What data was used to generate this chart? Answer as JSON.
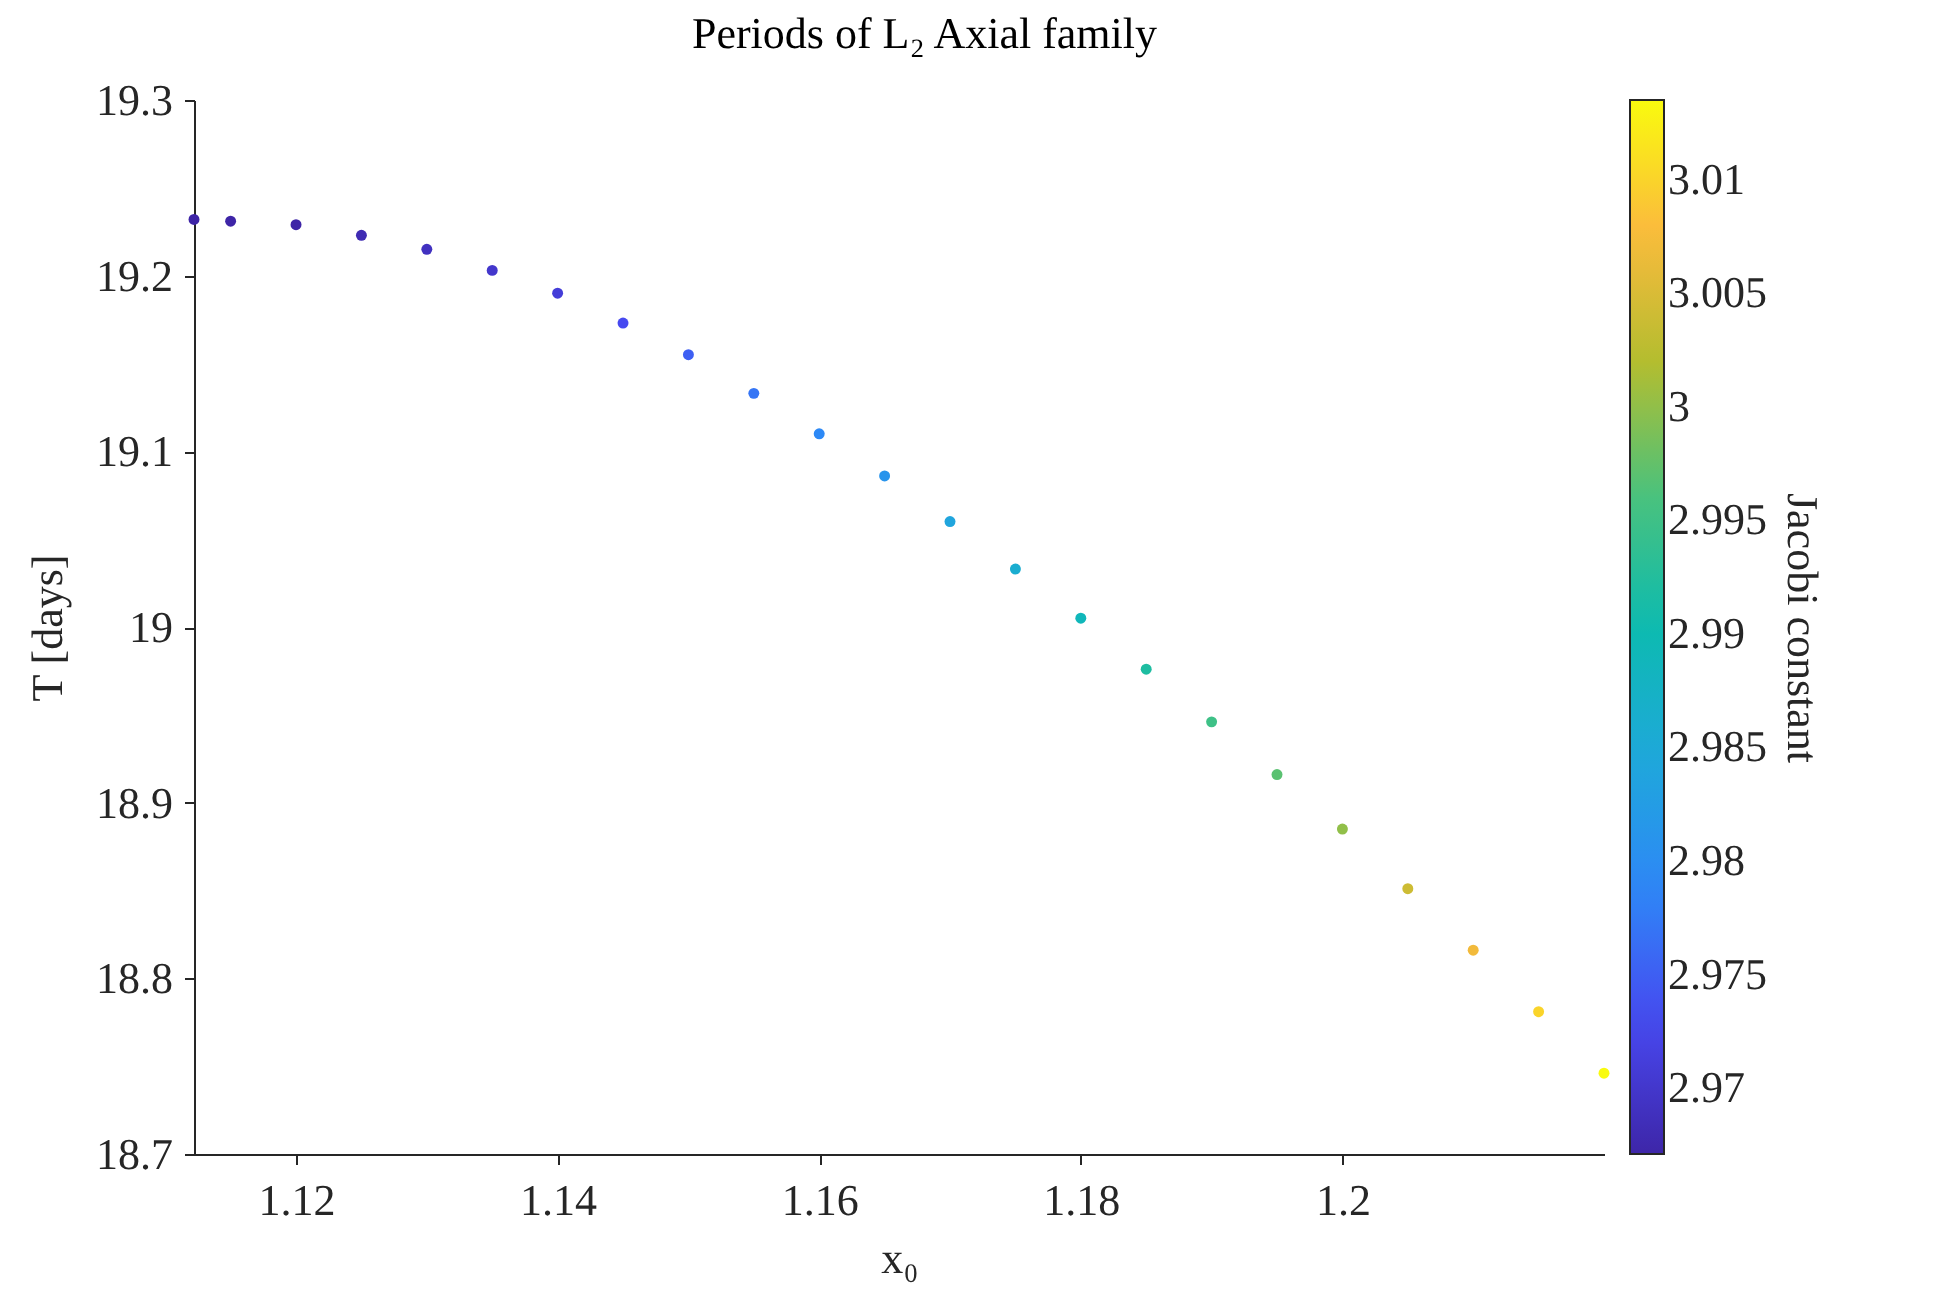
{
  "chart_data": {
    "type": "scatter",
    "title": "Periods of L₂ Axial family",
    "xlabel": "x₀",
    "ylabel": "T [days]",
    "clabel": "Jacobi constant",
    "x": [
      1.1122,
      1.115,
      1.12,
      1.125,
      1.13,
      1.135,
      1.14,
      1.145,
      1.15,
      1.155,
      1.16,
      1.165,
      1.17,
      1.175,
      1.18,
      1.185,
      1.19,
      1.195,
      1.2,
      1.205,
      1.21,
      1.215,
      1.22
    ],
    "values": [
      19.232,
      19.231,
      19.229,
      19.223,
      19.215,
      19.203,
      19.19,
      19.173,
      19.155,
      19.133,
      19.11,
      19.086,
      19.06,
      19.033,
      19.005,
      18.976,
      18.946,
      18.916,
      18.885,
      18.851,
      18.816,
      18.781,
      18.746
    ],
    "cvalues": [
      2.967,
      2.967,
      2.967,
      2.968,
      2.969,
      2.97,
      2.971,
      2.973,
      2.975,
      2.977,
      2.979,
      2.981,
      2.984,
      2.986,
      2.989,
      2.992,
      2.995,
      2.997,
      3.0,
      3.004,
      3.007,
      3.01,
      3.0135
    ],
    "xlim": [
      1.1122,
      1.22
    ],
    "xticks": [
      1.12,
      1.14,
      1.16,
      1.18,
      1.2
    ],
    "ylim": [
      18.7,
      19.3
    ],
    "yticks": [
      18.7,
      18.8,
      18.9,
      19,
      19.1,
      19.2,
      19.3
    ],
    "clim": [
      2.9671,
      3.0135
    ],
    "cticks": [
      2.97,
      2.975,
      2.98,
      2.985,
      2.99,
      2.995,
      3,
      3.005,
      3.01
    ],
    "grid": false,
    "marker": "circle"
  }
}
